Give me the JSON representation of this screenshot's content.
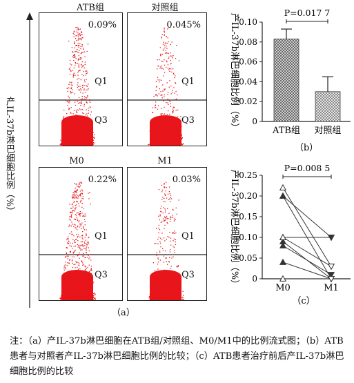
{
  "panel_a": {
    "y_axis_label": "产IL-37b淋巴细胞比例（%）",
    "label": "（a）",
    "plots": [
      {
        "title": "ATB组",
        "percent": "0.09%",
        "q1": "Q1",
        "q3": "Q3"
      },
      {
        "title": "对照组",
        "percent": "0.045%",
        "q1": "Q1",
        "q3": "Q3"
      },
      {
        "title": "M0",
        "percent": "0.22%",
        "q1": "Q1",
        "q3": "Q3"
      },
      {
        "title": "M1",
        "percent": "0.03%",
        "q1": "Q1",
        "q3": "Q3"
      }
    ]
  },
  "chart_data": [
    {
      "type": "bar",
      "panel": "（b）",
      "categories": [
        "ATB组",
        "对照组"
      ],
      "values": [
        0.083,
        0.03
      ],
      "errors": [
        0.01,
        0.015
      ],
      "ylim": [
        0,
        0.1
      ],
      "yticks": [
        "0",
        "0.02",
        "0.04",
        "0.06",
        "0.08",
        "0.10"
      ],
      "ylabel": "产IL-37b淋巴细胞比例（%）",
      "p_value": "P=0.017 7"
    },
    {
      "type": "line",
      "panel": "（c）",
      "categories": [
        "M0",
        "M1"
      ],
      "series": [
        {
          "marker": "filled",
          "values": [
            0.2,
            0.1
          ]
        },
        {
          "marker": "filled",
          "values": [
            0.2,
            0.0
          ]
        },
        {
          "marker": "filled",
          "values": [
            0.1,
            0.1
          ]
        },
        {
          "marker": "filled",
          "values": [
            0.09,
            0.0
          ]
        },
        {
          "marker": "filled",
          "values": [
            0.08,
            0.01
          ]
        },
        {
          "marker": "filled",
          "values": [
            0.04,
            0.0
          ]
        },
        {
          "marker": "open",
          "values": [
            0.22,
            0.03
          ]
        },
        {
          "marker": "open",
          "values": [
            0.0,
            0.0
          ]
        },
        {
          "marker": "open",
          "values": [
            0.1,
            0.03
          ]
        }
      ],
      "ylim": [
        0,
        0.25
      ],
      "yticks": [
        "0",
        "0.05",
        "0.10",
        "0.15",
        "0.20",
        "0.25"
      ],
      "ylabel": "产IL-37b淋巴细胞比例（%）",
      "p_value": "P=0.008 5"
    }
  ],
  "caption": "注：（a）产IL-37b淋巴细胞在ATB组/对照组、M0/M1中的比例流式图；（b）ATB患者与对照者产IL-37b淋巴细胞比例的比较；（c）ATB患者治疗前后产IL-37b淋巴细胞比例的比较"
}
